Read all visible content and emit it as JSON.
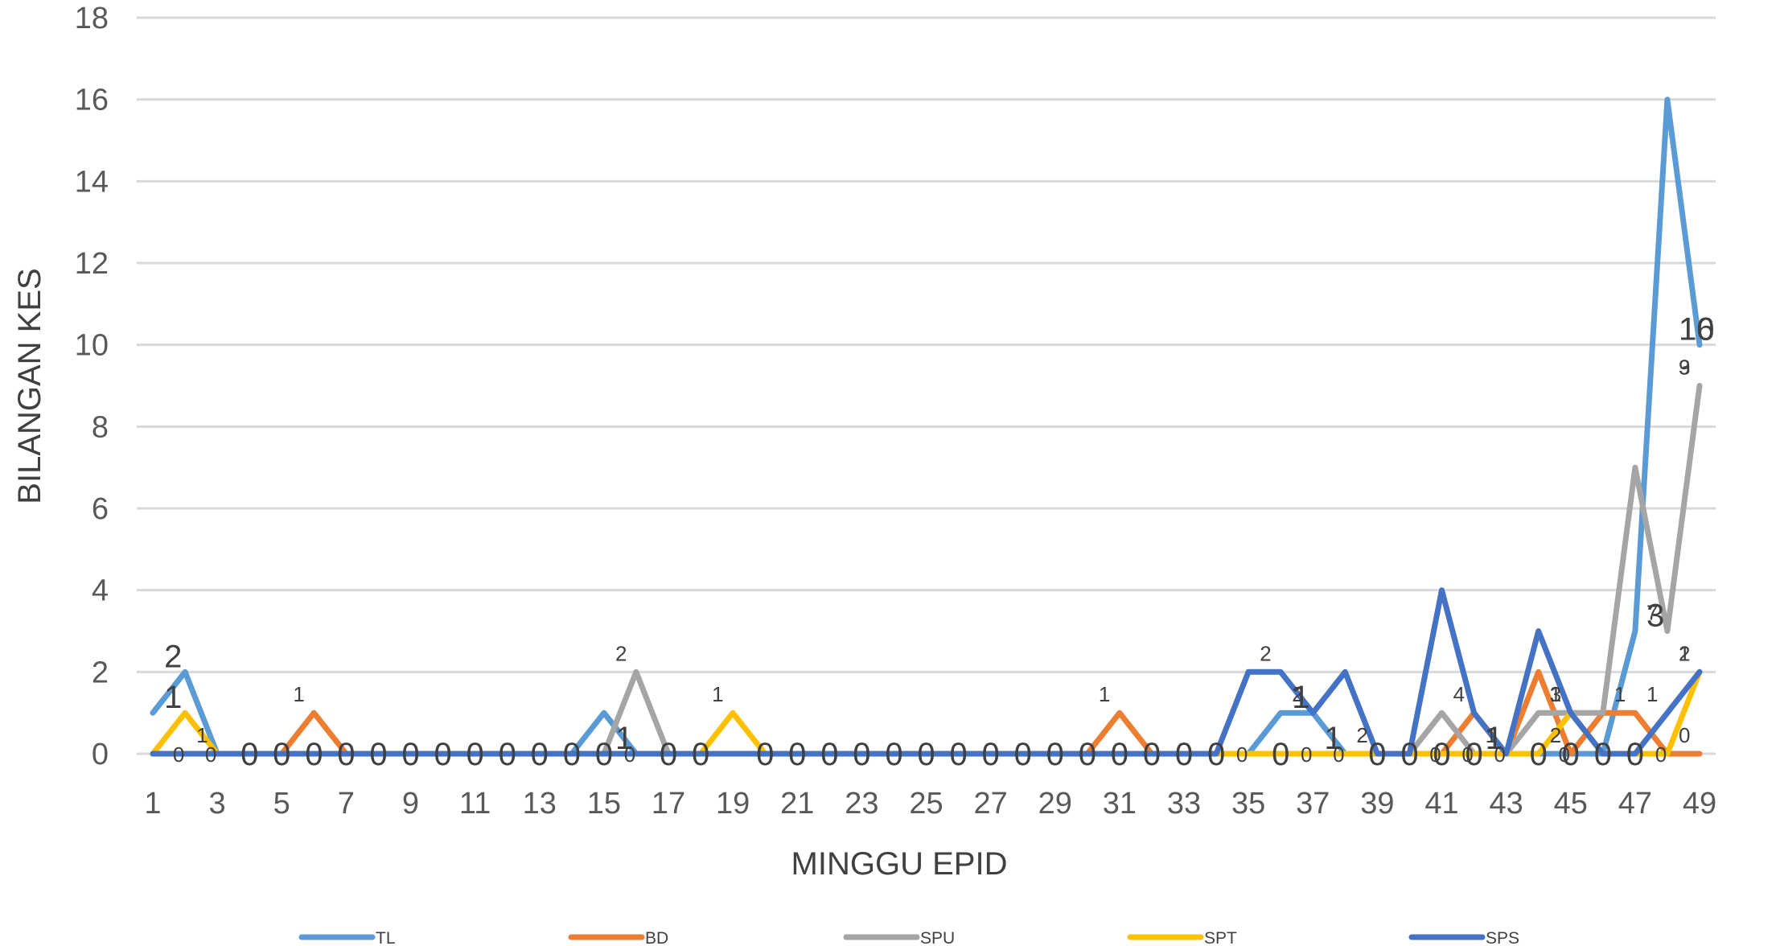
{
  "chart_data": {
    "type": "line",
    "title": "",
    "xlabel": "MINGGU EPID",
    "ylabel": "BILANGAN KES",
    "ylim": [
      0,
      18
    ],
    "yticks": [
      0,
      2,
      4,
      6,
      8,
      10,
      12,
      14,
      16,
      18
    ],
    "xlim": [
      1,
      49
    ],
    "xticks": [
      1,
      3,
      5,
      7,
      9,
      11,
      13,
      15,
      17,
      19,
      21,
      23,
      25,
      27,
      29,
      31,
      33,
      35,
      37,
      39,
      41,
      43,
      45,
      47,
      49
    ],
    "grid": "horizontal",
    "legend_position": "bottom",
    "x": [
      1,
      2,
      3,
      4,
      5,
      6,
      7,
      8,
      9,
      10,
      11,
      12,
      13,
      14,
      15,
      16,
      17,
      18,
      19,
      20,
      21,
      22,
      23,
      24,
      25,
      26,
      27,
      28,
      29,
      30,
      31,
      32,
      33,
      34,
      35,
      36,
      37,
      38,
      39,
      40,
      41,
      42,
      43,
      44,
      45,
      46,
      47,
      48,
      49
    ],
    "series": [
      {
        "name": "TL",
        "color": "#5B9BD5",
        "values": [
          1,
          2,
          0,
          0,
          0,
          0,
          0,
          0,
          0,
          0,
          0,
          0,
          0,
          0,
          1,
          0,
          0,
          0,
          0,
          0,
          0,
          0,
          0,
          0,
          0,
          0,
          0,
          0,
          0,
          0,
          0,
          0,
          0,
          0,
          0,
          1,
          1,
          0,
          0,
          0,
          0,
          0,
          0,
          0,
          0,
          0,
          3,
          16,
          10
        ]
      },
      {
        "name": "BD",
        "color": "#ED7D31",
        "values": [
          0,
          0,
          0,
          0,
          0,
          1,
          0,
          0,
          0,
          0,
          0,
          0,
          0,
          0,
          0,
          0,
          0,
          0,
          0,
          0,
          0,
          0,
          0,
          0,
          0,
          0,
          0,
          0,
          0,
          0,
          1,
          0,
          0,
          0,
          0,
          0,
          0,
          0,
          0,
          0,
          0,
          1,
          0,
          2,
          0,
          1,
          1,
          0,
          0
        ]
      },
      {
        "name": "SPU",
        "color": "#A5A5A5",
        "values": [
          0,
          0,
          0,
          0,
          0,
          0,
          0,
          0,
          0,
          0,
          0,
          0,
          0,
          0,
          0,
          2,
          0,
          0,
          0,
          0,
          0,
          0,
          0,
          0,
          0,
          0,
          0,
          0,
          0,
          0,
          0,
          0,
          0,
          0,
          0,
          0,
          0,
          0,
          0,
          0,
          1,
          0,
          0,
          1,
          1,
          1,
          7,
          3,
          9
        ]
      },
      {
        "name": "SPT",
        "color": "#FFC000",
        "values": [
          0,
          1,
          0,
          0,
          0,
          0,
          0,
          0,
          0,
          0,
          0,
          0,
          0,
          0,
          0,
          0,
          0,
          0,
          1,
          0,
          0,
          0,
          0,
          0,
          0,
          0,
          0,
          0,
          0,
          0,
          0,
          0,
          0,
          0,
          0,
          0,
          0,
          0,
          0,
          0,
          0,
          0,
          0,
          0,
          1,
          0,
          0,
          0,
          2
        ]
      },
      {
        "name": "SPS",
        "color": "#4472C4",
        "values": [
          0,
          0,
          0,
          0,
          0,
          0,
          0,
          0,
          0,
          0,
          0,
          0,
          0,
          0,
          0,
          0,
          0,
          0,
          0,
          0,
          0,
          0,
          0,
          0,
          0,
          0,
          0,
          0,
          0,
          0,
          0,
          0,
          0,
          0,
          2,
          2,
          1,
          2,
          0,
          0,
          4,
          1,
          0,
          3,
          1,
          0,
          0,
          1,
          2
        ]
      }
    ],
    "data_labels": [
      {
        "series": "TL",
        "x": 2,
        "text": "2",
        "size": "large"
      },
      {
        "series": "SPT",
        "x": 2,
        "text": "1",
        "size": "large"
      },
      {
        "series": "TL",
        "x": 3,
        "text": "1",
        "size": "small"
      },
      {
        "series": "BD",
        "x": 6,
        "text": "1",
        "size": "small"
      },
      {
        "series": "SPU",
        "x": 16,
        "text": "2",
        "size": "small"
      },
      {
        "series": "TL",
        "x": 16,
        "text": "1",
        "size": "large"
      },
      {
        "series": "SPT",
        "x": 19,
        "text": "1",
        "size": "small"
      },
      {
        "series": "BD",
        "x": 31,
        "text": "1",
        "size": "small"
      },
      {
        "series": "SPS",
        "x": 36,
        "text": "2",
        "size": "small"
      },
      {
        "series": "SPS",
        "x": 37,
        "text": "2",
        "size": "small"
      },
      {
        "series": "TL",
        "x": 37,
        "text": "1",
        "size": "large"
      },
      {
        "series": "TL",
        "x": 38,
        "text": "1",
        "size": "large"
      },
      {
        "series": "SPS",
        "x": 39,
        "text": "2",
        "size": "small"
      },
      {
        "series": "SPS",
        "x": 42,
        "text": "4",
        "size": "small"
      },
      {
        "series": "BD",
        "x": 43,
        "text": "1",
        "size": "small"
      },
      {
        "series": "SPU",
        "x": 43,
        "text": "1",
        "size": "large"
      },
      {
        "series": "SPS",
        "x": 45,
        "text": "3",
        "size": "small"
      },
      {
        "series": "BD",
        "x": 45,
        "text": "2",
        "size": "small"
      },
      {
        "series": "SPS",
        "x": 45,
        "text": "1",
        "size": "small"
      },
      {
        "series": "BD",
        "x": 47,
        "text": "1",
        "size": "small"
      },
      {
        "series": "SPU",
        "x": 48,
        "text": "7",
        "size": "small"
      },
      {
        "series": "SPU",
        "x": 48,
        "text": "3",
        "size": "large"
      },
      {
        "series": "SPS",
        "x": 48,
        "text": "1",
        "size": "small"
      },
      {
        "series": "TL",
        "x": 49,
        "text": "16",
        "size": "large"
      },
      {
        "series": "TL",
        "x": 49,
        "text": "10",
        "size": "large"
      },
      {
        "series": "SPU",
        "x": 49,
        "text": "9",
        "size": "small"
      },
      {
        "series": "SPU",
        "x": 49,
        "text": "3",
        "size": "small"
      },
      {
        "series": "SPS",
        "x": 49,
        "text": "2",
        "size": "small"
      },
      {
        "series": "SPT",
        "x": 49,
        "text": "1",
        "size": "small"
      },
      {
        "series": "BD",
        "x": 49,
        "text": "0",
        "size": "small"
      }
    ],
    "zero_labels_small": [
      2,
      3,
      16,
      35,
      37,
      38,
      41,
      42,
      43,
      45,
      48
    ],
    "zero_labels_large": [
      4,
      5,
      6,
      7,
      8,
      9,
      10,
      11,
      12,
      13,
      14,
      15,
      17,
      18,
      20,
      21,
      22,
      23,
      24,
      25,
      26,
      27,
      28,
      29,
      30,
      31,
      32,
      33,
      34,
      36,
      39,
      40,
      41,
      42,
      44,
      45,
      46,
      47
    ]
  }
}
